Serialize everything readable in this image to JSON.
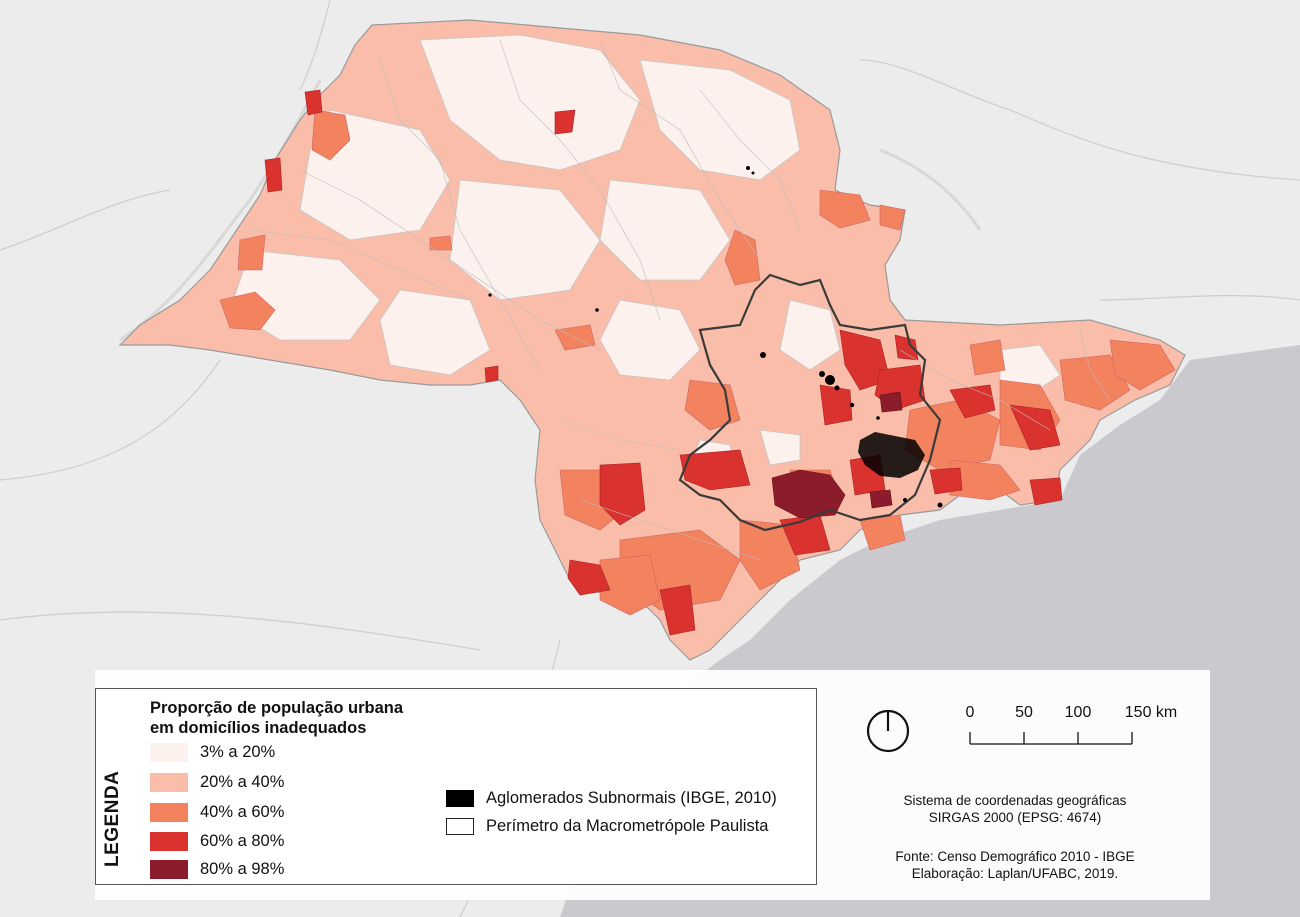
{
  "legend": {
    "vertical_label": "LEGENDA",
    "title_line1": "Proporção de população urbana",
    "title_line2": "em domicílios inadequados",
    "classes": [
      {
        "label": "3% a 20%",
        "color": "#fdf1ee"
      },
      {
        "label": "20% a 40%",
        "color": "#f9bda9"
      },
      {
        "label": "40% a 60%",
        "color": "#f3825f"
      },
      {
        "label": "60% a 80%",
        "color": "#d9322f"
      },
      {
        "label": "80% a 98%",
        "color": "#8c1c2c"
      }
    ],
    "overlays": [
      {
        "label": "Aglomerados Subnormais (IBGE, 2010)",
        "fill": "#000000",
        "stroke": "#000000"
      },
      {
        "label": "Perímetro da Macrometrópole Paulista",
        "fill": "#ffffff",
        "stroke": "#222222"
      }
    ]
  },
  "scale": {
    "ticks": [
      "0",
      "50",
      "100",
      "150 km"
    ]
  },
  "crs": {
    "line1": "Sistema de coordenadas geográficas",
    "line2": "SIRGAS 2000 (EPSG: 4674)"
  },
  "credits": {
    "source": "Fonte: Censo Demográfico 2010 - IBGE",
    "author": "Elaboração: Laplan/UFABC, 2019."
  },
  "map": {
    "basemap_color": "#ececec",
    "ocean_color": "#c9c9ce",
    "boundary_color": "#a8a8a8"
  }
}
